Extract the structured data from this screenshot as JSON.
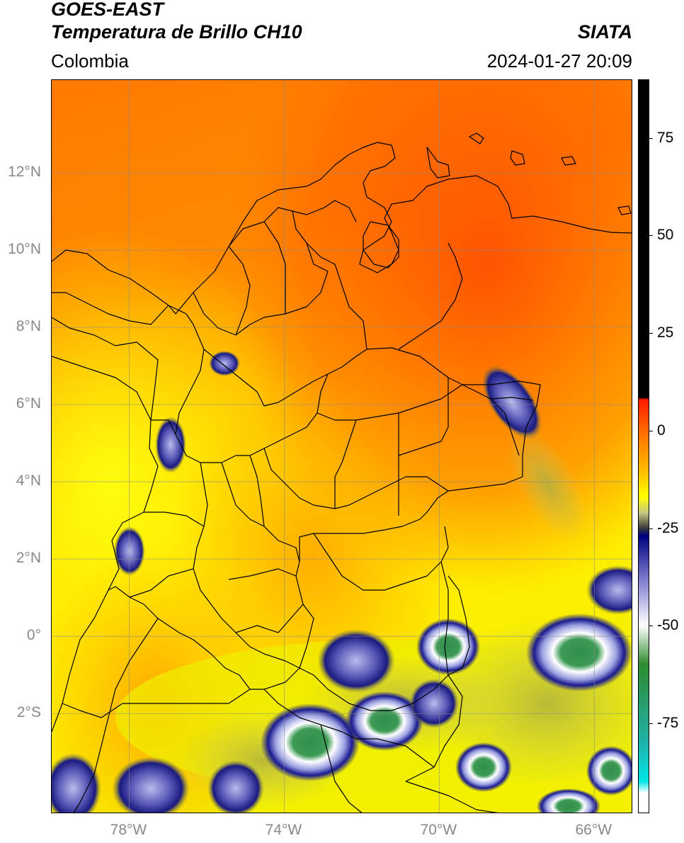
{
  "header": {
    "satellite": "GOES-EAST",
    "product": "Temperatura de Brillo CH10",
    "brand": "SIATA",
    "region": "Colombia",
    "datetime": "2024-01-27 20:09"
  },
  "map": {
    "lon_range": [
      -80,
      -65
    ],
    "lat_range": [
      -4.6,
      14.4
    ],
    "lat_ticks": [
      {
        "lat": 12,
        "label": "12°N"
      },
      {
        "lat": 10,
        "label": "10°N"
      },
      {
        "lat": 8,
        "label": "8°N"
      },
      {
        "lat": 6,
        "label": "6°N"
      },
      {
        "lat": 4,
        "label": "4°N"
      },
      {
        "lat": 2,
        "label": "2°N"
      },
      {
        "lat": 0,
        "label": "0°"
      },
      {
        "lat": -2,
        "label": "2°S"
      }
    ],
    "lon_ticks": [
      {
        "lon": -78,
        "label": "78°W"
      },
      {
        "lon": -74,
        "label": "74°W"
      },
      {
        "lon": -70,
        "label": "70°W"
      },
      {
        "lon": -66,
        "label": "66°W"
      }
    ],
    "gridlines": true
  },
  "colorbar": {
    "range": [
      -98,
      90
    ],
    "unit_hint": "°C",
    "ticks": [
      {
        "value": 75,
        "label": "75"
      },
      {
        "value": 50,
        "label": "50"
      },
      {
        "value": 25,
        "label": "25"
      },
      {
        "value": 0,
        "label": "0"
      },
      {
        "value": -25,
        "label": "-25"
      },
      {
        "value": -50,
        "label": "-50"
      },
      {
        "value": -75,
        "label": "-75"
      }
    ],
    "stops": [
      {
        "value": 90,
        "color": "#000000"
      },
      {
        "value": 8.5,
        "color": "#000000"
      },
      {
        "value": 8,
        "color": "#ff1a00"
      },
      {
        "value": 0,
        "color": "#ff6a00"
      },
      {
        "value": -10,
        "color": "#ffb800"
      },
      {
        "value": -17,
        "color": "#ffff00"
      },
      {
        "value": -21,
        "color": "#c8c880"
      },
      {
        "value": -25,
        "color": "#3a3a3a"
      },
      {
        "value": -27,
        "color": "#000080"
      },
      {
        "value": -40,
        "color": "#9090d8"
      },
      {
        "value": -50,
        "color": "#ffffff"
      },
      {
        "value": -60,
        "color": "#2e8b2e"
      },
      {
        "value": -80,
        "color": "#20b2aa"
      },
      {
        "value": -90,
        "color": "#00e5e5"
      },
      {
        "value": -93,
        "color": "#ffffff"
      },
      {
        "value": -98,
        "color": "#ffffff"
      }
    ]
  }
}
